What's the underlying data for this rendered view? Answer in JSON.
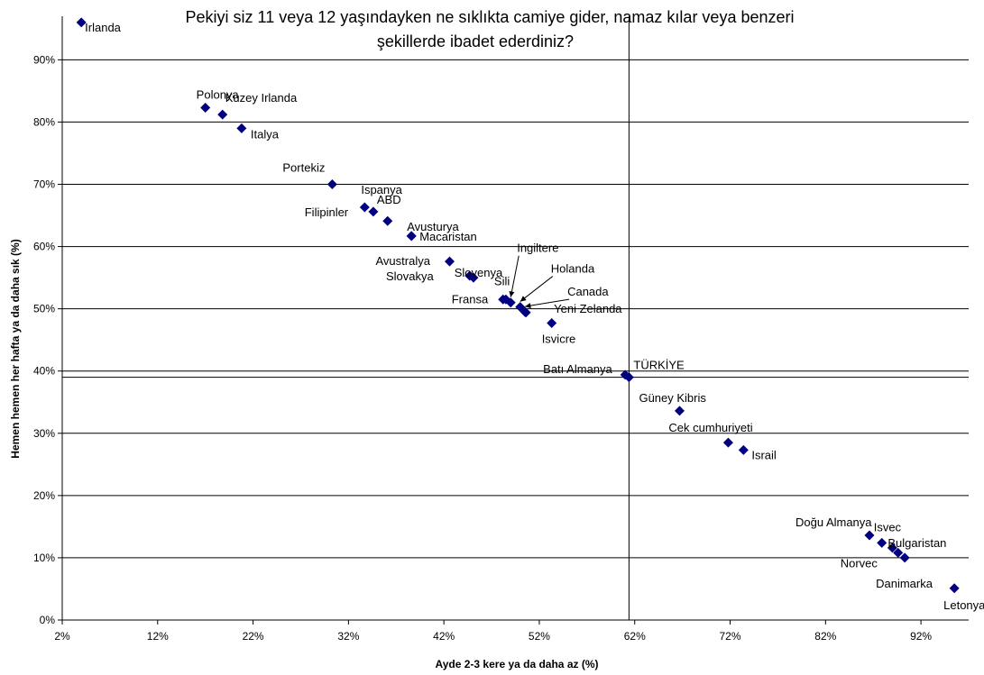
{
  "chart_data": {
    "type": "scatter",
    "title_line1": "Pekiyi siz 11 veya 12 yaşındayken ne sıklıkta camiye gider, namaz kılar veya benzeri",
    "title_line2": "şekillerde ibadet ederdiniz?",
    "xlabel": "Ayde 2-3 kere ya da daha az (%)",
    "ylabel": "Hemen hemen her hafta ya da daha sık (%)",
    "xlim": [
      2,
      97
    ],
    "ylim": [
      0,
      97
    ],
    "xticks": [
      2,
      12,
      22,
      32,
      42,
      52,
      62,
      72,
      82,
      92
    ],
    "yticks": [
      0,
      10,
      20,
      30,
      40,
      50,
      60,
      70,
      80,
      90
    ],
    "tick_suffix": "%",
    "grid": "horizontal",
    "reference_lines": {
      "x": 61.4,
      "y": 39.0
    },
    "marker_color": "#000080",
    "points": [
      {
        "label": "Irlanda",
        "x": 4.0,
        "y": 96.0
      },
      {
        "label": "Polonya",
        "x": 17.0,
        "y": 82.3
      },
      {
        "label": "Kuzey Irlanda",
        "x": 18.8,
        "y": 81.2
      },
      {
        "label": "Italya",
        "x": 20.8,
        "y": 79.0
      },
      {
        "label": "Portekiz",
        "x": 30.3,
        "y": 70.0
      },
      {
        "label": "Ispanya",
        "x": 33.7,
        "y": 66.3
      },
      {
        "label": "ABD",
        "x": 34.6,
        "y": 65.6
      },
      {
        "label": "Filipinler",
        "x": 36.1,
        "y": 64.1
      },
      {
        "label": "Avusturya",
        "x": 38.6,
        "y": 61.7
      },
      {
        "label": "Macaristan",
        "x": 38.6,
        "y": 61.7
      },
      {
        "label": "Avustralya",
        "x": 42.6,
        "y": 57.6
      },
      {
        "label": "Slovenya",
        "x": 44.7,
        "y": 55.3
      },
      {
        "label": "Slovakya",
        "x": 45.1,
        "y": 55.0
      },
      {
        "label": "Ingiltere",
        "x": 49.0,
        "y": 51.0
      },
      {
        "label": "Sili",
        "x": 48.5,
        "y": 51.5
      },
      {
        "label": "Holanda",
        "x": 50.0,
        "y": 50.3
      },
      {
        "label": "Canada",
        "x": 50.5,
        "y": 49.5
      },
      {
        "label": "Fransa",
        "x": 48.2,
        "y": 51.5
      },
      {
        "label": "Yeni Zelanda",
        "x": 50.6,
        "y": 49.4
      },
      {
        "label": "Isvicre",
        "x": 53.3,
        "y": 47.7
      },
      {
        "label": "Batı Almanya",
        "x": 61.0,
        "y": 39.4
      },
      {
        "label": "TÜRKİYE",
        "x": 61.4,
        "y": 39.0
      },
      {
        "label": "Güney Kibris",
        "x": 66.7,
        "y": 33.6
      },
      {
        "label": "Cek cumhuriyeti",
        "x": 71.8,
        "y": 28.5
      },
      {
        "label": "Israil",
        "x": 73.4,
        "y": 27.3
      },
      {
        "label": "Doğu Almanya",
        "x": 86.6,
        "y": 13.6
      },
      {
        "label": "Isvec",
        "x": 87.9,
        "y": 12.4
      },
      {
        "label": "Bulgaristan",
        "x": 89.0,
        "y": 11.6
      },
      {
        "label": "Norvec",
        "x": 89.6,
        "y": 10.8
      },
      {
        "label": "Danimarka",
        "x": 90.3,
        "y": 10.0
      },
      {
        "label": "Letonya",
        "x": 95.5,
        "y": 5.1
      }
    ]
  }
}
